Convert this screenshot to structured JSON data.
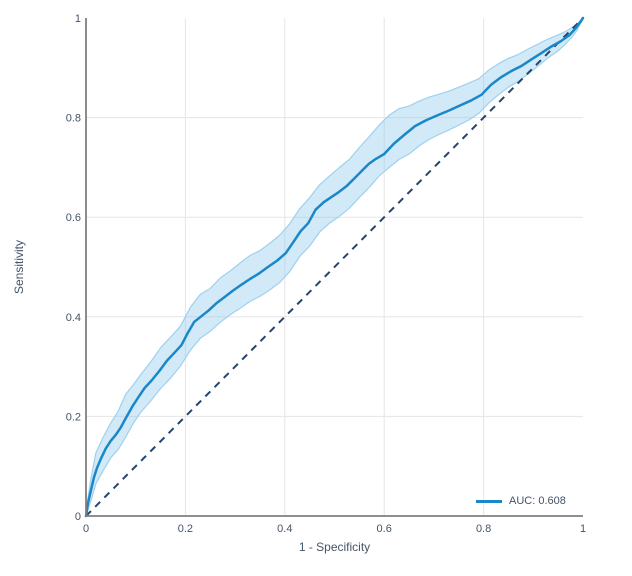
{
  "chart_data": {
    "type": "line",
    "title": "",
    "xlabel": "1 - Specificity",
    "ylabel": "Sensitivity",
    "xlim": [
      0,
      1
    ],
    "ylim": [
      0,
      1
    ],
    "grid": true,
    "gridlines": [
      0.2,
      0.4,
      0.6,
      0.8
    ],
    "x_ticks": [
      {
        "v": 0,
        "label": "0"
      },
      {
        "v": 0.2,
        "label": "0.2"
      },
      {
        "v": 0.4,
        "label": "0.4"
      },
      {
        "v": 0.6,
        "label": "0.6"
      },
      {
        "v": 0.8,
        "label": "0.8"
      },
      {
        "v": 1,
        "label": "1"
      }
    ],
    "y_ticks": [
      {
        "v": 0,
        "label": "0"
      },
      {
        "v": 0.2,
        "label": "0.2"
      },
      {
        "v": 0.4,
        "label": "0.4"
      },
      {
        "v": 0.6,
        "label": "0.6"
      },
      {
        "v": 0.8,
        "label": "0.8"
      },
      {
        "v": 1,
        "label": "1"
      }
    ],
    "colors": {
      "curve": "#1a87c9",
      "band_fill": "rgba(137,197,235,0.38)",
      "band_edge": "#9ed1ef",
      "diagonal": "#25456e",
      "grid": "#e5e5e5",
      "axis": "#7f7f7f",
      "label": "#44546a"
    },
    "legend": {
      "position": "bottom-right",
      "entries": [
        {
          "label": "AUC: 0.608",
          "auc_value": 0.608,
          "color": "#1a87c9"
        }
      ]
    },
    "series": [
      {
        "name": "ROC curve",
        "kind": "line",
        "points": [
          [
            0,
            0
          ],
          [
            0.004,
            0.026
          ],
          [
            0.01,
            0.052
          ],
          [
            0.016,
            0.078
          ],
          [
            0.022,
            0.096
          ],
          [
            0.03,
            0.115
          ],
          [
            0.04,
            0.136
          ],
          [
            0.05,
            0.151
          ],
          [
            0.06,
            0.163
          ],
          [
            0.07,
            0.178
          ],
          [
            0.082,
            0.2
          ],
          [
            0.094,
            0.221
          ],
          [
            0.105,
            0.238
          ],
          [
            0.118,
            0.257
          ],
          [
            0.132,
            0.272
          ],
          [
            0.148,
            0.292
          ],
          [
            0.163,
            0.312
          ],
          [
            0.178,
            0.328
          ],
          [
            0.192,
            0.343
          ],
          [
            0.205,
            0.368
          ],
          [
            0.218,
            0.39
          ],
          [
            0.232,
            0.401
          ],
          [
            0.247,
            0.413
          ],
          [
            0.262,
            0.427
          ],
          [
            0.278,
            0.439
          ],
          [
            0.295,
            0.452
          ],
          [
            0.312,
            0.464
          ],
          [
            0.33,
            0.476
          ],
          [
            0.348,
            0.487
          ],
          [
            0.366,
            0.5
          ],
          [
            0.385,
            0.513
          ],
          [
            0.402,
            0.528
          ],
          [
            0.418,
            0.551
          ],
          [
            0.432,
            0.572
          ],
          [
            0.447,
            0.588
          ],
          [
            0.462,
            0.615
          ],
          [
            0.478,
            0.63
          ],
          [
            0.493,
            0.64
          ],
          [
            0.508,
            0.65
          ],
          [
            0.524,
            0.662
          ],
          [
            0.54,
            0.678
          ],
          [
            0.555,
            0.693
          ],
          [
            0.569,
            0.707
          ],
          [
            0.583,
            0.717
          ],
          [
            0.6,
            0.727
          ],
          [
            0.62,
            0.748
          ],
          [
            0.64,
            0.765
          ],
          [
            0.662,
            0.783
          ],
          [
            0.685,
            0.795
          ],
          [
            0.708,
            0.805
          ],
          [
            0.73,
            0.814
          ],
          [
            0.752,
            0.824
          ],
          [
            0.774,
            0.834
          ],
          [
            0.796,
            0.846
          ],
          [
            0.815,
            0.866
          ],
          [
            0.835,
            0.881
          ],
          [
            0.855,
            0.893
          ],
          [
            0.875,
            0.903
          ],
          [
            0.895,
            0.916
          ],
          [
            0.915,
            0.929
          ],
          [
            0.935,
            0.942
          ],
          [
            0.955,
            0.953
          ],
          [
            0.972,
            0.965
          ],
          [
            0.985,
            0.979
          ],
          [
            0.994,
            0.991
          ],
          [
            1,
            1
          ]
        ]
      },
      {
        "name": "Confidence band",
        "kind": "band",
        "points": [
          [
            0,
            0,
            0.01
          ],
          [
            0.01,
            0.031,
            0.076
          ],
          [
            0.02,
            0.065,
            0.127
          ],
          [
            0.035,
            0.092,
            0.159
          ],
          [
            0.05,
            0.117,
            0.187
          ],
          [
            0.065,
            0.134,
            0.211
          ],
          [
            0.08,
            0.159,
            0.245
          ],
          [
            0.095,
            0.186,
            0.263
          ],
          [
            0.11,
            0.208,
            0.284
          ],
          [
            0.13,
            0.231,
            0.309
          ],
          [
            0.15,
            0.256,
            0.338
          ],
          [
            0.17,
            0.277,
            0.359
          ],
          [
            0.19,
            0.301,
            0.381
          ],
          [
            0.21,
            0.333,
            0.419
          ],
          [
            0.23,
            0.357,
            0.445
          ],
          [
            0.25,
            0.371,
            0.457
          ],
          [
            0.27,
            0.389,
            0.478
          ],
          [
            0.29,
            0.404,
            0.492
          ],
          [
            0.31,
            0.417,
            0.508
          ],
          [
            0.33,
            0.431,
            0.523
          ],
          [
            0.35,
            0.441,
            0.533
          ],
          [
            0.37,
            0.454,
            0.548
          ],
          [
            0.39,
            0.469,
            0.564
          ],
          [
            0.41,
            0.491,
            0.587
          ],
          [
            0.43,
            0.521,
            0.617
          ],
          [
            0.45,
            0.542,
            0.639
          ],
          [
            0.47,
            0.57,
            0.665
          ],
          [
            0.49,
            0.588,
            0.683
          ],
          [
            0.51,
            0.602,
            0.7
          ],
          [
            0.53,
            0.618,
            0.716
          ],
          [
            0.55,
            0.64,
            0.74
          ],
          [
            0.57,
            0.66,
            0.762
          ],
          [
            0.59,
            0.683,
            0.785
          ],
          [
            0.61,
            0.7,
            0.805
          ],
          [
            0.63,
            0.716,
            0.818
          ],
          [
            0.65,
            0.727,
            0.823
          ],
          [
            0.67,
            0.743,
            0.833
          ],
          [
            0.69,
            0.756,
            0.841
          ],
          [
            0.71,
            0.766,
            0.847
          ],
          [
            0.73,
            0.775,
            0.853
          ],
          [
            0.75,
            0.785,
            0.861
          ],
          [
            0.77,
            0.795,
            0.869
          ],
          [
            0.79,
            0.808,
            0.878
          ],
          [
            0.81,
            0.829,
            0.895
          ],
          [
            0.83,
            0.846,
            0.908
          ],
          [
            0.85,
            0.861,
            0.919
          ],
          [
            0.87,
            0.873,
            0.927
          ],
          [
            0.89,
            0.888,
            0.938
          ],
          [
            0.91,
            0.904,
            0.948
          ],
          [
            0.93,
            0.92,
            0.958
          ],
          [
            0.95,
            0.934,
            0.966
          ],
          [
            0.965,
            0.948,
            0.973
          ],
          [
            0.978,
            0.962,
            0.981
          ],
          [
            0.988,
            0.975,
            0.988
          ],
          [
            1,
            1,
            1
          ]
        ]
      },
      {
        "name": "Reference diagonal",
        "kind": "dashed-line",
        "points": [
          [
            0,
            0
          ],
          [
            1,
            1
          ]
        ]
      }
    ]
  }
}
